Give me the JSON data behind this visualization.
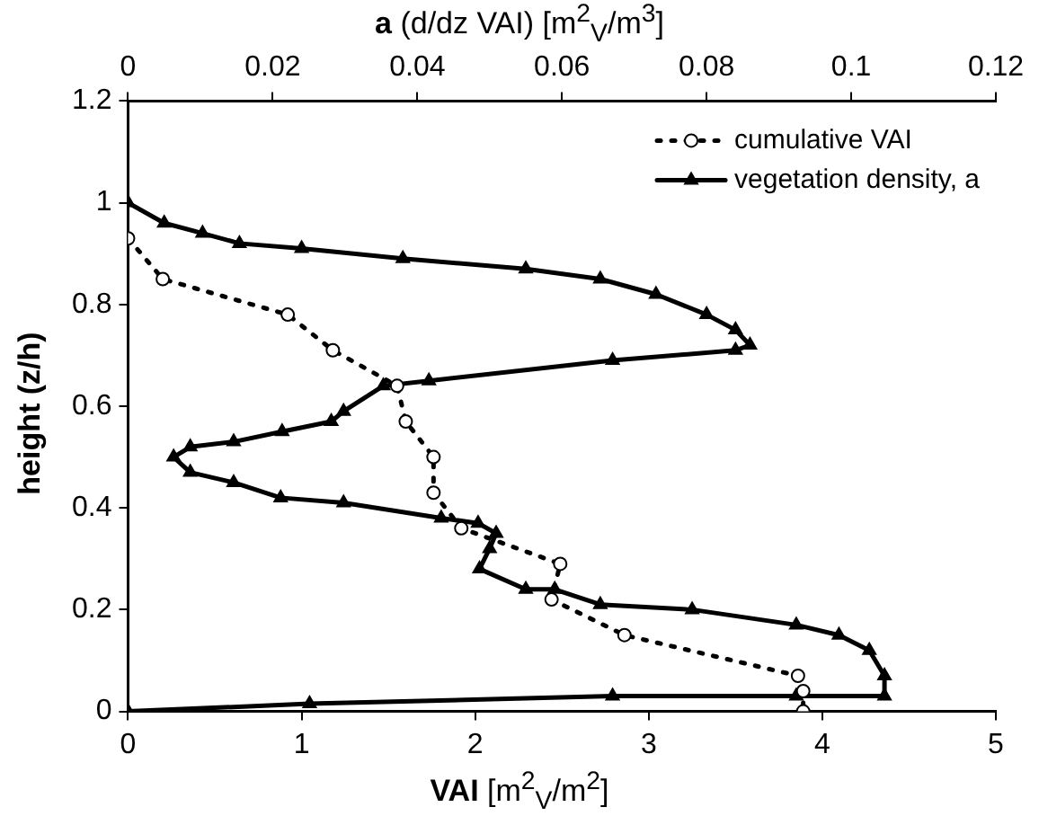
{
  "chart_data": {
    "type": "line",
    "xlabel": "VAI [m$^{2}$$_{V}$/m$^{2}$]",
    "x2label": "a (d/dz VAI) [m$^{2}$$_{V}$/m$^{3}$]",
    "ylabel": "height (z/h)",
    "xlim": [
      0,
      5
    ],
    "xticks": [
      0,
      1,
      2,
      3,
      4,
      5
    ],
    "x2lim": [
      0,
      0.12
    ],
    "x2ticks": [
      0,
      0.02,
      0.04,
      0.06,
      0.08,
      0.1,
      0.12
    ],
    "ylim": [
      0,
      1.2
    ],
    "yticks": [
      0,
      0.2,
      0.4,
      0.6,
      0.8,
      1,
      1.2
    ],
    "grid": false,
    "legend": "top right",
    "series": [
      {
        "name": "cumulative VAI",
        "color": "#000000",
        "marker": "circle",
        "line_style": "dotted",
        "x": [
          0,
          0.2,
          0.92,
          1.18,
          1.55,
          1.6,
          1.76,
          1.76,
          1.92,
          2.49,
          2.44,
          2.86,
          3.86,
          3.89,
          3.89
        ],
        "values": [
          0.93,
          0.85,
          0.78,
          0.71,
          0.64,
          0.57,
          0.5,
          0.43,
          0.36,
          0.29,
          0.22,
          0.15,
          0.07,
          0.04,
          0
        ]
      },
      {
        "name": "vegetation density, a",
        "axis": "x2",
        "color": "#000000",
        "marker": "triangle",
        "line_style": "solid",
        "x": [
          0,
          0.005,
          0.0103,
          0.0154,
          0.024,
          0.038,
          0.055,
          0.0653,
          0.073,
          0.08,
          0.084,
          0.086,
          0.084,
          0.067,
          0.0416,
          0.0353,
          0.0298,
          0.0281,
          0.0213,
          0.0146,
          0.0086,
          0.0063,
          0.0086,
          0.0146,
          0.0211,
          0.0298,
          0.0433,
          0.0484,
          0.0509,
          0.05,
          0.0486,
          0.055,
          0.059,
          0.0653,
          0.078,
          0.0924,
          0.0983,
          0.1025,
          0.1046,
          0.1046,
          0.0924,
          0.067,
          0.0251,
          0
        ],
        "values": [
          1,
          0.96,
          0.94,
          0.92,
          0.91,
          0.89,
          0.87,
          0.85,
          0.82,
          0.78,
          0.75,
          0.72,
          0.71,
          0.69,
          0.65,
          0.64,
          0.59,
          0.57,
          0.55,
          0.53,
          0.52,
          0.5,
          0.47,
          0.45,
          0.42,
          0.41,
          0.38,
          0.37,
          0.35,
          0.32,
          0.28,
          0.24,
          0.24,
          0.21,
          0.2,
          0.17,
          0.15,
          0.12,
          0.07,
          0.03,
          0.03,
          0.03,
          0.015,
          0
        ]
      }
    ]
  }
}
